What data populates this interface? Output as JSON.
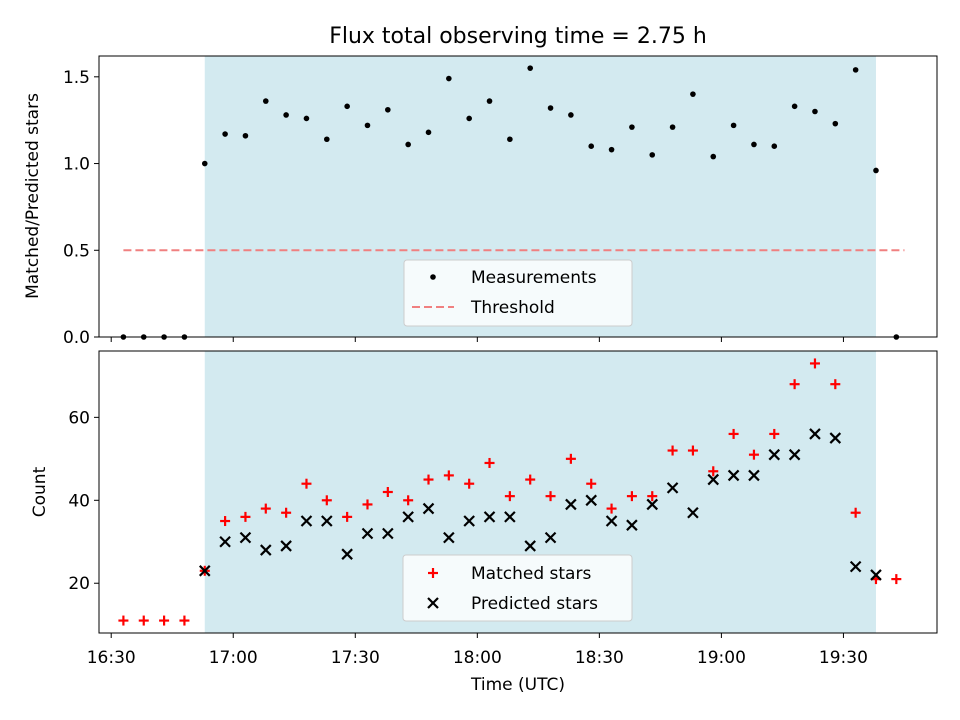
{
  "chart_data": [
    {
      "type": "scatter",
      "title": "Flux total observing time = 2.75 h",
      "xlabel": "",
      "ylabel": "Matched/Predicted stars",
      "xlim": [
        "16:27",
        "19:53"
      ],
      "ylim": [
        0,
        1.62
      ],
      "yticks": [
        "0.0",
        "0.5",
        "1.0",
        "1.5"
      ],
      "shaded_x_range": [
        "16:53",
        "19:38"
      ],
      "shade_color": "#d3eaf0",
      "grid": false,
      "legend_position": "lower center",
      "series": [
        {
          "name": "Measurements",
          "marker": "dot",
          "color": "#000000",
          "x": [
            "16:33",
            "16:38",
            "16:43",
            "16:48",
            "16:53",
            "16:58",
            "17:03",
            "17:08",
            "17:13",
            "17:18",
            "17:23",
            "17:28",
            "17:33",
            "17:38",
            "17:43",
            "17:48",
            "17:53",
            "17:58",
            "18:03",
            "18:08",
            "18:13",
            "18:18",
            "18:23",
            "18:28",
            "18:33",
            "18:38",
            "18:43",
            "18:48",
            "18:53",
            "18:58",
            "19:03",
            "19:08",
            "19:13",
            "19:18",
            "19:23",
            "19:28",
            "19:33",
            "19:38",
            "19:43"
          ],
          "y": [
            0.0,
            0.0,
            0.0,
            0.0,
            1.0,
            1.17,
            1.16,
            1.36,
            1.28,
            1.26,
            1.14,
            1.33,
            1.22,
            1.31,
            1.11,
            1.18,
            1.49,
            1.26,
            1.36,
            1.14,
            1.55,
            1.32,
            1.28,
            1.1,
            1.08,
            1.21,
            1.05,
            1.21,
            1.4,
            1.04,
            1.22,
            1.11,
            1.1,
            1.33,
            1.3,
            1.23,
            1.54,
            0.96,
            0.0
          ]
        },
        {
          "name": "Threshold",
          "style": "dashed",
          "color": "#f08080",
          "x": [
            "16:33",
            "19:45"
          ],
          "y": [
            0.5,
            0.5
          ]
        }
      ]
    },
    {
      "type": "scatter",
      "title": "",
      "xlabel": "Time (UTC)",
      "ylabel": "Count",
      "xlim": [
        "16:27",
        "19:53"
      ],
      "ylim": [
        8,
        76
      ],
      "xticks": [
        "16:30",
        "17:00",
        "17:30",
        "18:00",
        "18:30",
        "19:00",
        "19:30"
      ],
      "yticks": [
        "20",
        "40",
        "60"
      ],
      "shaded_x_range": [
        "16:53",
        "19:38"
      ],
      "shade_color": "#d3eaf0",
      "grid": false,
      "legend_position": "lower center",
      "series": [
        {
          "name": "Matched stars",
          "marker": "plus",
          "color": "#ff0000",
          "x": [
            "16:33",
            "16:38",
            "16:43",
            "16:48",
            "16:53",
            "16:58",
            "17:03",
            "17:08",
            "17:13",
            "17:18",
            "17:23",
            "17:28",
            "17:33",
            "17:38",
            "17:43",
            "17:48",
            "17:53",
            "17:58",
            "18:03",
            "18:08",
            "18:13",
            "18:18",
            "18:23",
            "18:28",
            "18:33",
            "18:38",
            "18:43",
            "18:48",
            "18:53",
            "18:58",
            "19:03",
            "19:08",
            "19:13",
            "19:18",
            "19:23",
            "19:28",
            "19:33",
            "19:38",
            "19:43"
          ],
          "y": [
            11,
            11,
            11,
            11,
            23,
            35,
            36,
            38,
            37,
            44,
            40,
            36,
            39,
            42,
            40,
            45,
            46,
            44,
            49,
            41,
            45,
            41,
            50,
            44,
            38,
            41,
            41,
            52,
            52,
            47,
            56,
            51,
            56,
            68,
            73,
            68,
            37,
            21,
            21
          ]
        },
        {
          "name": "Predicted stars",
          "marker": "x",
          "color": "#000000",
          "x": [
            "16:53",
            "16:58",
            "17:03",
            "17:08",
            "17:13",
            "17:18",
            "17:23",
            "17:28",
            "17:33",
            "17:38",
            "17:43",
            "17:48",
            "17:53",
            "17:58",
            "18:03",
            "18:08",
            "18:13",
            "18:18",
            "18:23",
            "18:28",
            "18:33",
            "18:38",
            "18:43",
            "18:48",
            "18:53",
            "18:58",
            "19:03",
            "19:08",
            "19:13",
            "19:18",
            "19:23",
            "19:28",
            "19:33",
            "19:38"
          ],
          "y": [
            23,
            30,
            31,
            28,
            29,
            35,
            35,
            27,
            32,
            32,
            36,
            38,
            31,
            35,
            36,
            36,
            29,
            31,
            39,
            40,
            35,
            34,
            39,
            43,
            37,
            45,
            46,
            46,
            51,
            51,
            56,
            55,
            24,
            22
          ]
        }
      ]
    }
  ]
}
